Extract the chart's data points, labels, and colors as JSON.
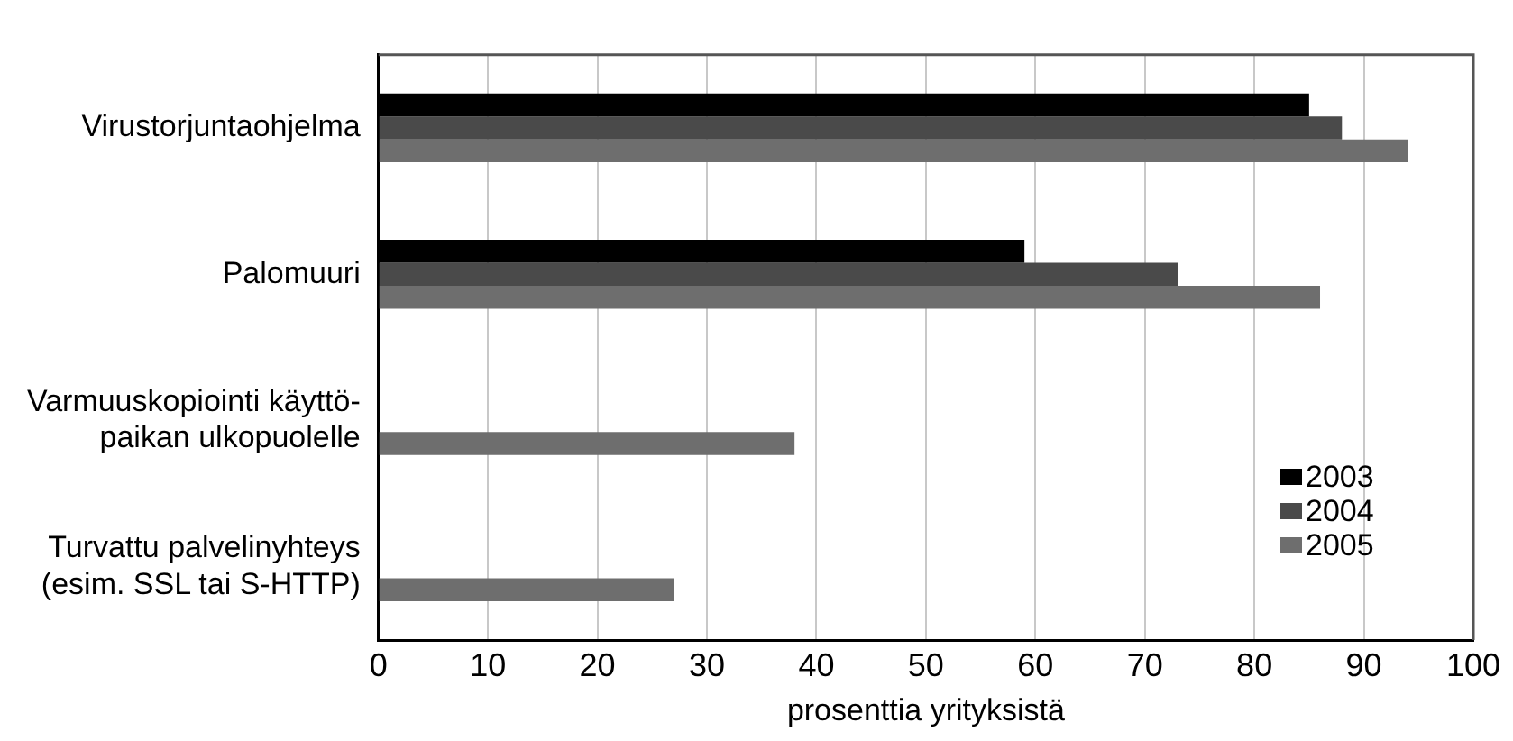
{
  "chart_data": {
    "type": "bar",
    "orientation": "horizontal",
    "xlabel": "prosenttia yrityksistä",
    "categories": [
      "Virustorjuntaohjelma",
      "Palomuuri",
      "Varmuuskopiointi käyttö-\npaikan ulkopuolelle",
      "Turvattu palvelinyhteys\n(esim. SSL tai S-HTTP)"
    ],
    "series": [
      {
        "name": "2003",
        "color": "#000000",
        "values": [
          85,
          59,
          null,
          null
        ]
      },
      {
        "name": "2004",
        "color": "#4a4a4a",
        "values": [
          88,
          73,
          null,
          null
        ]
      },
      {
        "name": "2005",
        "color": "#6e6e6e",
        "values": [
          94,
          86,
          38,
          27
        ]
      }
    ],
    "xlim": [
      0,
      100
    ],
    "xticks": [
      0,
      10,
      20,
      30,
      40,
      50,
      60,
      70,
      80,
      90,
      100
    ],
    "grid": "x",
    "legend": "bottom right"
  }
}
